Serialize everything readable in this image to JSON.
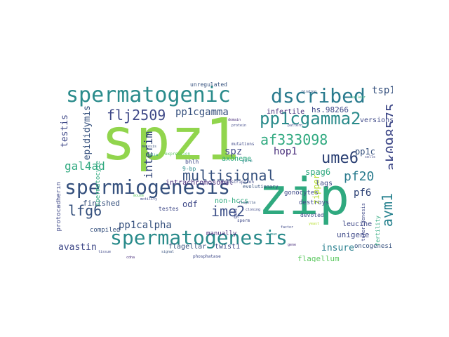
{
  "palette": {
    "big_green": "#91d54d",
    "teal_green": "#2fa97f",
    "teal": "#2a8b8b",
    "blue_teal": "#277f8e",
    "navy": "#35507d",
    "indigo": "#3f4988",
    "purple": "#472c7a",
    "dark_blue": "#31688e",
    "light_green": "#5ec962",
    "lime": "#b5de2b",
    "yellow": "#d9e21a"
  },
  "words": [
    {
      "text": "spz1",
      "color": "#91d54d"
    },
    {
      "text": "zip",
      "color": "#2fa97f"
    },
    {
      "text": "spermatogenic",
      "color": "#2a8b8b"
    },
    {
      "text": "dscribed",
      "color": "#2a7b8e"
    },
    {
      "text": "spermiogenesis",
      "color": "#35507d"
    },
    {
      "text": "spermatogenesis",
      "color": "#2a8b8b"
    },
    {
      "text": "pp1cgamma2",
      "color": "#2a8b8b"
    },
    {
      "text": "af333098",
      "color": "#2fa97f"
    },
    {
      "text": "ak098575",
      "color": "#3f4988"
    },
    {
      "text": "ume6",
      "color": "#2a3f73"
    },
    {
      "text": "flj2509",
      "color": "#3f4988"
    },
    {
      "text": "multisignal",
      "color": "#35507d"
    },
    {
      "text": "aym1",
      "color": "#26818e"
    },
    {
      "text": "pf20",
      "color": "#2a7b8e"
    },
    {
      "text": "ime2",
      "color": "#3e5189"
    },
    {
      "text": "lfg6",
      "color": "#35507d"
    },
    {
      "text": "gal4ad",
      "color": "#2fa97f"
    },
    {
      "text": "pp1cgamma",
      "color": "#35507d"
    },
    {
      "text": "tsp1",
      "color": "#35507d"
    },
    {
      "text": "interim",
      "color": "#2a3f73"
    },
    {
      "text": "epididymis",
      "color": "#35507d"
    },
    {
      "text": "testis",
      "color": "#3f4988"
    },
    {
      "text": "spz",
      "color": "#3f4988"
    },
    {
      "text": "hop1",
      "color": "#472c7a"
    },
    {
      "text": "pp1c",
      "color": "#35507d"
    },
    {
      "text": "spag6",
      "color": "#2fa97f"
    },
    {
      "text": "pf6",
      "color": "#2a3f73"
    },
    {
      "text": "pp1calpha",
      "color": "#35507d"
    },
    {
      "text": "odf",
      "color": "#3f4988"
    },
    {
      "text": "avastin",
      "color": "#3f4988"
    },
    {
      "text": "insure",
      "color": "#277f8e"
    },
    {
      "text": "flagellum",
      "color": "#5ec962"
    },
    {
      "text": "unigene",
      "color": "#3f4988"
    },
    {
      "text": "zipper",
      "color": "#b5de2b"
    },
    {
      "text": "non-hccs",
      "color": "#2fa97f"
    },
    {
      "text": "hs.98266",
      "color": "#3f4988"
    },
    {
      "text": "infertile",
      "color": "#472c7a"
    },
    {
      "text": "finished",
      "color": "#35507d"
    },
    {
      "text": "versions",
      "color": "#3f4988"
    },
    {
      "text": "lags",
      "color": "#3f4988"
    },
    {
      "text": "leucine",
      "color": "#3f4988"
    },
    {
      "text": "oncogenesis",
      "color": "#35507d"
    },
    {
      "text": "flagellar",
      "color": "#35507d"
    },
    {
      "text": "twist1",
      "color": "#3f4988"
    },
    {
      "text": "protocadherin",
      "color": "#3f4988"
    },
    {
      "text": "manually",
      "color": "#472c7a"
    },
    {
      "text": "compiled",
      "color": "#35507d"
    },
    {
      "text": "intrachromosomal",
      "color": "#472c7a"
    },
    {
      "text": "axoneme",
      "color": "#2fa97f"
    },
    {
      "text": "bhlh",
      "color": "#3f4988"
    },
    {
      "text": "gonocytes",
      "color": "#3f4988"
    },
    {
      "text": "destroys",
      "color": "#3f4988"
    },
    {
      "text": "fertility",
      "color": "#2fa97f"
    },
    {
      "text": "unregulated",
      "color": "#35507d"
    },
    {
      "text": "spermatocyte",
      "color": "#2fa97f"
    },
    {
      "text": "devoted",
      "color": "#3f4988"
    },
    {
      "text": "testes",
      "color": "#3f4988"
    },
    {
      "text": "9-bp",
      "color": "#2a8b8b"
    },
    {
      "text": "gen",
      "color": "#3f4988"
    },
    {
      "text": "evolutionary",
      "color": "#35507d"
    },
    {
      "text": "tumorigenesis",
      "color": "#3f4988"
    },
    {
      "text": "phosphatase",
      "color": "#3f4988"
    },
    {
      "text": "mutations",
      "color": "#3f4988"
    },
    {
      "text": "expression",
      "color": "#5ec962"
    },
    {
      "text": "transcription",
      "color": "#3f4988"
    },
    {
      "text": "germ",
      "color": "#2a8b8b"
    },
    {
      "text": "sperm",
      "color": "#3f4988"
    },
    {
      "text": "meiosis",
      "color": "#35507d"
    },
    {
      "text": "cilia",
      "color": "#2fa97f"
    },
    {
      "text": "domain",
      "color": "#472c7a"
    },
    {
      "text": "protein",
      "color": "#3f4988"
    },
    {
      "text": "mouse",
      "color": "#5ec962"
    },
    {
      "text": "motility",
      "color": "#3f4988"
    },
    {
      "text": "flagella",
      "color": "#35507d"
    },
    {
      "text": "cloning",
      "color": "#3f4988"
    },
    {
      "text": "yeast",
      "color": "#b5de2b"
    },
    {
      "text": "factor",
      "color": "#3f4988"
    },
    {
      "text": "human",
      "color": "#2a8b8b"
    },
    {
      "text": "gene",
      "color": "#472c7a"
    },
    {
      "text": "cells",
      "color": "#3f4988"
    },
    {
      "text": "binding",
      "color": "#35507d"
    },
    {
      "text": "nuclear",
      "color": "#2fa97f"
    },
    {
      "text": "pattern",
      "color": "#3f4988"
    },
    {
      "text": "signal",
      "color": "#35507d"
    },
    {
      "text": "tissue",
      "color": "#3f4988"
    },
    {
      "text": "cdna",
      "color": "#472c7a"
    }
  ]
}
